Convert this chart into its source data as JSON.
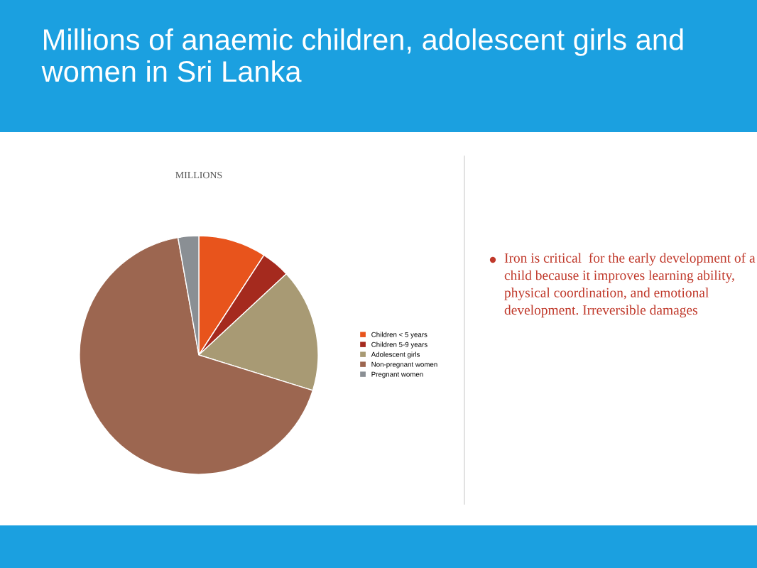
{
  "chart_data": {
    "type": "pie",
    "title": "Millions of anaemic children, adolescent girls and women in Sri Lanka",
    "subtitle": "MILLIONS",
    "categories": [
      "Children < 5 years",
      "Children 5-9 years",
      "Adolescent girls",
      "Non-pregnant women",
      "Pregnant women"
    ],
    "values": [
      9.2,
      3.9,
      16.7,
      67.4,
      2.8
    ],
    "colors": [
      "#e8541c",
      "#a52a1e",
      "#a89a74",
      "#9c6650",
      "#8a8f94"
    ],
    "legend": "right",
    "annotations": [
      "Iron is critical  for the early development of a child because it improves learning ability, physical coordination, and emotional development. Irreversible damages"
    ]
  }
}
